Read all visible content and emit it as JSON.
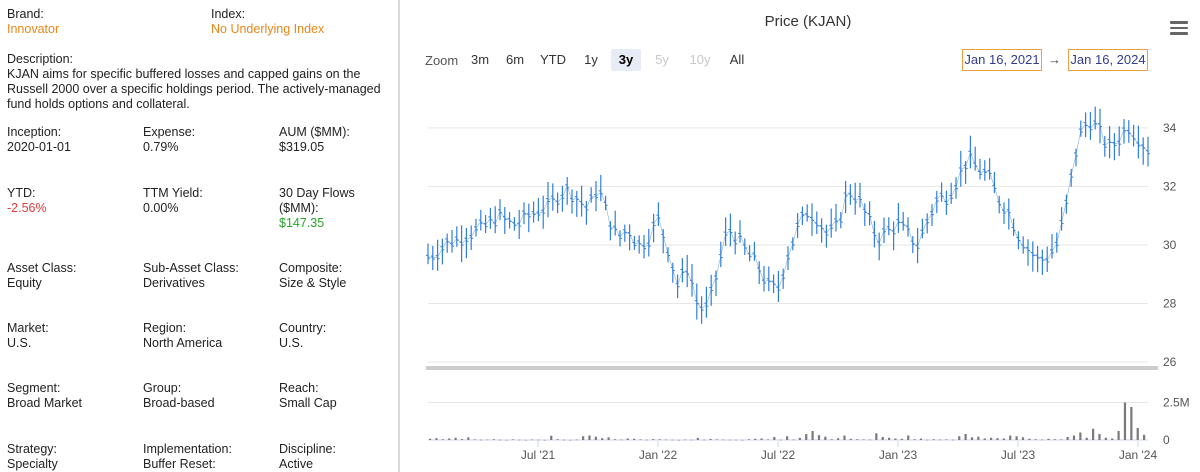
{
  "fund": {
    "brand": {
      "label": "Brand:",
      "value": "Innovator"
    },
    "index": {
      "label": "Index:",
      "value": "No Underlying Index"
    },
    "description": {
      "label": "Description:",
      "lines": [
        "KJAN aims for specific buffered losses and capped gains on the",
        "Russell 2000 over a specific holdings period. The actively-managed",
        "fund holds options and collateral."
      ]
    },
    "inception": {
      "label": "Inception:",
      "value": "2020-01-01"
    },
    "expense": {
      "label": "Expense:",
      "value": "0.79%"
    },
    "aum": {
      "label": "AUM ($MM):",
      "value": "$319.05"
    },
    "ytd": {
      "label": "YTD:",
      "value": "-2.56%"
    },
    "ttm_yield": {
      "label": "TTM Yield:",
      "value": "0.00%"
    },
    "flows": {
      "label_lines": [
        "30 Day Flows",
        "($MM):"
      ],
      "value": "$147.35"
    },
    "asset_class": {
      "label": "Asset Class:",
      "value": "Equity"
    },
    "sub_asset_class": {
      "label": "Sub-Asset Class:",
      "value": "Derivatives"
    },
    "composite": {
      "label": "Composite:",
      "value": "Size & Style"
    },
    "market": {
      "label": "Market:",
      "value": "U.S."
    },
    "region": {
      "label": "Region:",
      "value": "North America"
    },
    "country": {
      "label": "Country:",
      "value": "U.S."
    },
    "segment": {
      "label": "Segment:",
      "value": "Broad Market"
    },
    "group": {
      "label": "Group:",
      "value": "Broad-based"
    },
    "reach": {
      "label": "Reach:",
      "value": "Small Cap"
    },
    "strategy": {
      "label": "Strategy:",
      "value": "Specialty"
    },
    "implementation": {
      "label": "Implementation:",
      "value": "Buffer Reset:"
    },
    "discipline": {
      "label": "Discipline:",
      "value": "Active"
    }
  },
  "chart": {
    "title": "Price (KJAN)",
    "zoom_label": "Zoom",
    "zoom_buttons": [
      {
        "label": "3m",
        "state": "normal"
      },
      {
        "label": "6m",
        "state": "normal"
      },
      {
        "label": "YTD",
        "state": "normal"
      },
      {
        "label": "1y",
        "state": "normal"
      },
      {
        "label": "3y",
        "state": "active"
      },
      {
        "label": "5y",
        "state": "disabled"
      },
      {
        "label": "10y",
        "state": "disabled"
      },
      {
        "label": "All",
        "state": "normal"
      }
    ],
    "date_from": "Jan 16, 2021",
    "date_arrow": "→",
    "date_to": "Jan 16, 2024",
    "colors": {
      "price_line": "#2f7ed8",
      "volume_bar": "#7a7a7a",
      "grid": "#e6e6e6",
      "navigator": "#cccccc"
    }
  },
  "chart_data": {
    "type": "line",
    "title": "Price (KJAN)",
    "x_tick_labels": [
      "Jul '21",
      "Jan '22",
      "Jul '22",
      "Jan '23",
      "Jul '23",
      "Jan '24"
    ],
    "price_axis": {
      "ticks": [
        "26",
        "28",
        "30",
        "32",
        "34"
      ],
      "ylim": [
        26,
        35.5
      ]
    },
    "volume_axis": {
      "ticks": [
        "0",
        "2.5M"
      ],
      "ylim": [
        0,
        3000000
      ]
    },
    "x_range": [
      "2021-01-16",
      "2024-01-16"
    ],
    "price_series": {
      "name": "KJAN price",
      "x_months": [
        0,
        0.5,
        1,
        1.5,
        2,
        2.5,
        3,
        3.5,
        4,
        4.5,
        5,
        5.5,
        6,
        6.5,
        7,
        7.5,
        8,
        8.5,
        9,
        9.5,
        10,
        10.5,
        11,
        11.5,
        12,
        12.5,
        13,
        13.5,
        14,
        14.5,
        15,
        15.5,
        16,
        16.5,
        17,
        17.5,
        18,
        18.5,
        19,
        19.5,
        20,
        20.5,
        21,
        21.5,
        22,
        22.5,
        23,
        23.5,
        24,
        24.5,
        25,
        25.5,
        26,
        26.5,
        27,
        27.5,
        28,
        28.5,
        29,
        29.5,
        30,
        30.5,
        31,
        31.5,
        32,
        32.5,
        33,
        33.5,
        34,
        34.5,
        35,
        35.5,
        36
      ],
      "values": [
        29.6,
        29.8,
        30.1,
        30.2,
        30.4,
        30.5,
        30.7,
        31.0,
        30.8,
        30.7,
        31.0,
        31.2,
        31.3,
        31.7,
        31.9,
        31.6,
        31.2,
        32.0,
        31.0,
        30.2,
        30.6,
        30.0,
        30.2,
        30.9,
        29.9,
        28.6,
        29.3,
        27.9,
        27.8,
        29.2,
        30.6,
        30.2,
        29.7,
        29.3,
        28.6,
        28.5,
        29.7,
        30.6,
        31.2,
        30.9,
        30.3,
        30.7,
        31.9,
        31.6,
        30.9,
        30.2,
        30.5,
        30.7,
        30.4,
        30.0,
        30.9,
        31.6,
        31.7,
        32.3,
        33.0,
        32.6,
        32.4,
        31.6,
        31.2,
        30.4,
        29.9,
        29.5,
        29.6,
        30.1,
        31.6,
        33.6,
        34.3,
        34.0,
        33.3,
        33.6,
        34.1,
        33.7,
        33.3
      ]
    },
    "volume_series": {
      "name": "Volume",
      "values_M": [
        0.08,
        0.12,
        0.05,
        0.1,
        0.15,
        0.06,
        0.18,
        0.04,
        0.02,
        0.03,
        0.05,
        0.02,
        0.01,
        0.04,
        0.02,
        0.01,
        0.03,
        0.02,
        0.01,
        0.28,
        0.05,
        0.02,
        0.01,
        0.03,
        0.25,
        0.3,
        0.22,
        0.12,
        0.18,
        0.05,
        0.03,
        0.1,
        0.08,
        0.04,
        0.02,
        0.06,
        0.05,
        0.03,
        0.02,
        0.01,
        0.03,
        0.02,
        0.14,
        0.02,
        0.07,
        0.04,
        0.03,
        0.02,
        0.02,
        0.01,
        0.05,
        0.08,
        0.1,
        0.04,
        0.2,
        0.02,
        0.25,
        0.03,
        0.15,
        0.4,
        0.6,
        0.32,
        0.22,
        0.05,
        0.12,
        0.3,
        0.08,
        0.05,
        0.04,
        0.03,
        0.45,
        0.2,
        0.15,
        0.1,
        0.08,
        0.3,
        0.05,
        0.1,
        0.02,
        0.05,
        0.03,
        0.04,
        0.02,
        0.25,
        0.4,
        0.18,
        0.22,
        0.1,
        0.15,
        0.12,
        0.1,
        0.3,
        0.25,
        0.18,
        0.08,
        0.05,
        0.03,
        0.08,
        0.05,
        0.04,
        0.2,
        0.3,
        0.5,
        0.15,
        0.75,
        0.4,
        0.15,
        0.1,
        0.6,
        2.5,
        2.2,
        0.8,
        0.35
      ]
    }
  }
}
